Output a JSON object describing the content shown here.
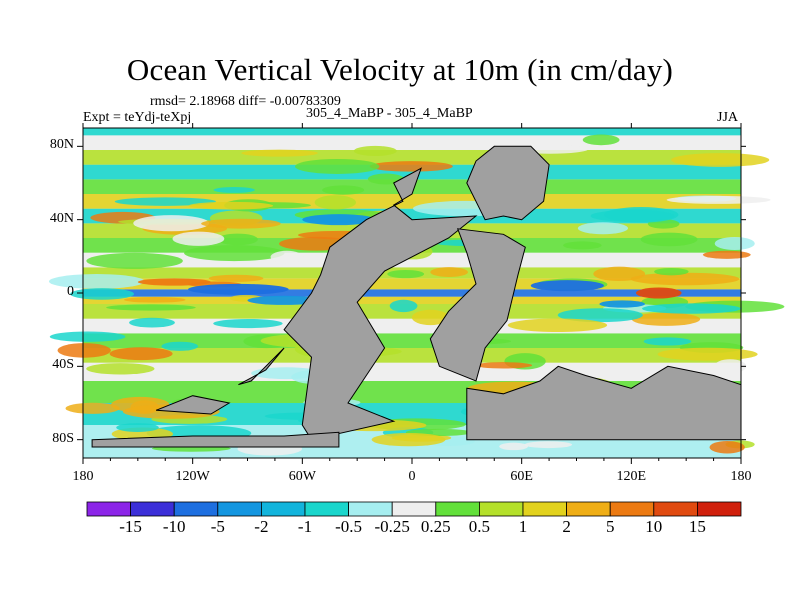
{
  "chart_data": {
    "type": "heatmap",
    "title": "Ocean Vertical Velocity at 10m (in cm/day)",
    "stats_line": "rmsd= 2.18968 diff= -0.00783309",
    "experiment_label": "Expt = teYdj-teXpj",
    "comparison_label": "305_4_MaBP - 305_4_MaBP",
    "season": "JJA",
    "x_ticks": [
      "180",
      "120W",
      "60W",
      "0",
      "60E",
      "120E",
      "180"
    ],
    "x_tick_values": [
      -180,
      -120,
      -60,
      0,
      60,
      120,
      180
    ],
    "y_ticks": [
      "80N",
      "40N",
      "0",
      "40S",
      "80S"
    ],
    "y_tick_values": [
      80,
      40,
      0,
      -40,
      -80
    ],
    "xlim": [
      -180,
      180
    ],
    "ylim": [
      -90,
      90
    ],
    "colorbar_labels": [
      "-15",
      "-10",
      "-5",
      "-2",
      "-1",
      "-0.5",
      "-0.25",
      "0.25",
      "0.5",
      "1",
      "2",
      "5",
      "10",
      "15"
    ],
    "colorbar_colors": [
      "#8c25e8",
      "#3c2fd8",
      "#1e6fe0",
      "#1496e0",
      "#12b4dc",
      "#1ad6cc",
      "#a6eef0",
      "#eeeeee",
      "#62e03a",
      "#b4e02a",
      "#e2d21e",
      "#efae16",
      "#ec7a12",
      "#e04a10",
      "#d0200c"
    ],
    "land_color": "#a0a0a0",
    "grid": false
  }
}
